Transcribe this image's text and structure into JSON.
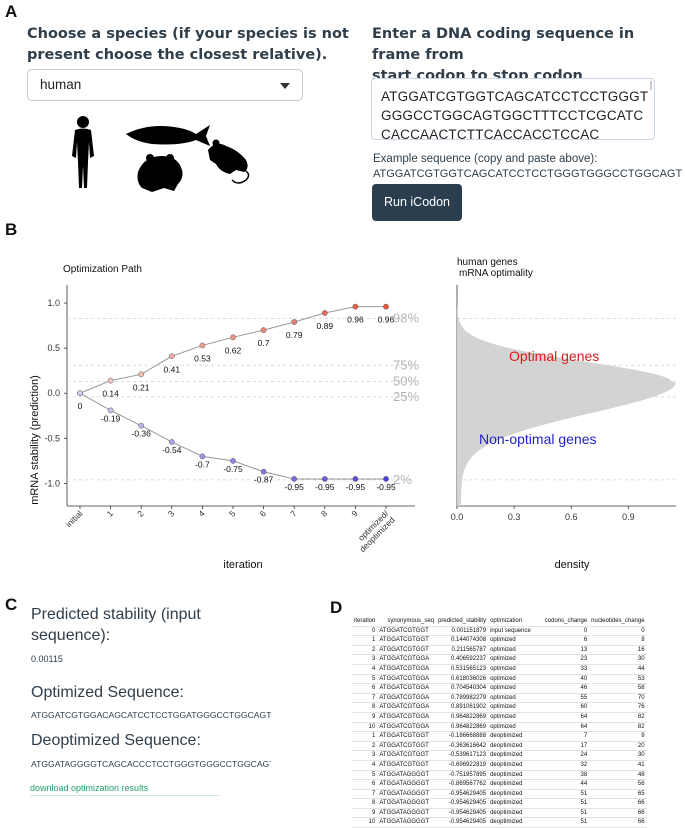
{
  "panels": {
    "a": "A",
    "b": "B",
    "c": "C",
    "d": "D"
  },
  "species": {
    "heading_line1": "Choose a species (if your species is not",
    "heading_line2": "present choose the closest relative).",
    "selected": "human",
    "icons": [
      "human-icon",
      "fish-icon",
      "frog-icon",
      "mouse-icon"
    ]
  },
  "sequence_input": {
    "heading_line1": "Enter a DNA coding sequence in frame from",
    "heading_line2": "start codon to stop codon",
    "value": "ATGGATCGTGGTCAGCATCCTCCTGGGTGGGCCTGGCAGTGGCTTTCCTCGCATCCACCAACTCTTCACCACCTCCAC",
    "example_label": "Example sequence (copy and paste above):",
    "example_value": "ATGGATCGTGGTCAGCATCCTCCTGGGTGGGCCTGGCAGT",
    "run_button": "Run iCodon"
  },
  "colors": {
    "optimized": "#e8553d",
    "deoptimized": "#4b3fd6",
    "density": "#d3d3d3",
    "optimal_text": "#dd1c1c",
    "nonoptimal_text": "#2222cc"
  },
  "chart_data": [
    {
      "type": "line",
      "title": "Optimization Path",
      "xlabel": "iteration",
      "ylabel": "mRNA stability (prediction)",
      "categories": [
        "initial",
        "1",
        "2",
        "3",
        "4",
        "5",
        "6",
        "7",
        "8",
        "9",
        "optimized/\ndeoptimized"
      ],
      "ylim": [
        -1.25,
        1.2
      ],
      "yticks": [
        "1.0",
        "0.5",
        "0.0",
        "-0.5",
        "-1.0"
      ],
      "series": [
        {
          "values": [
            0,
            0.14,
            0.21,
            0.41,
            0.53,
            0.62,
            0.7,
            0.79,
            0.89,
            0.96,
            0.96
          ],
          "labels": [
            "0",
            "0.14",
            "0.21",
            "0.41",
            "0.53",
            "0.62",
            "0.7",
            "0.79",
            "0.89",
            "0.96",
            "0.96"
          ]
        },
        {
          "values": [
            0,
            -0.19,
            -0.36,
            -0.54,
            -0.7,
            -0.75,
            -0.87,
            -0.95,
            -0.95,
            -0.95,
            -0.95
          ],
          "labels": [
            "",
            "-0.19",
            "-0.36",
            "-0.54",
            "-0.7",
            "-0.75",
            "-0.87",
            "-0.95",
            "-0.95",
            "-0.95",
            "-0.95"
          ]
        }
      ],
      "percentile_lines": [
        {
          "label": "98%",
          "value": 0.83
        },
        {
          "label": "75%",
          "value": 0.31
        },
        {
          "label": "50%",
          "value": 0.13
        },
        {
          "label": "25%",
          "value": -0.04
        },
        {
          "label": "2%",
          "value": -0.96
        }
      ]
    },
    {
      "type": "area",
      "title": "human genes\nmRNA optimality",
      "xlabel": "density",
      "xticks": [
        "0.0",
        "0.3",
        "0.6",
        "0.9"
      ],
      "xlim": [
        0,
        1.15
      ],
      "annotations": [
        "Optimal genes",
        "Non-optimal genes"
      ]
    }
  ],
  "section_c": {
    "stability_heading_line1": "Predicted stability (input",
    "stability_heading_line2": "sequence):",
    "stability_value": "0.00115",
    "optimized_heading": "Optimized Sequence:",
    "optimized_value": "ATGGATCGTGGACAGCATCCTCCTGGATGGGCCTGGCAGTGGCTTTCCTCGC",
    "deoptimized_heading": "Deoptimized Sequence:",
    "deoptimized_value": "ATGGATAGGGGTCAGCACCCTCCTGGGTGGGCCTGGCAGTGGCTTTCCTCGC",
    "download_link": "download optimization results"
  },
  "table": {
    "columns": [
      "iteration",
      "synonymous_seq",
      "predicted_stability",
      "optimization",
      "codons_change",
      "nucleotides_change"
    ],
    "rows": [
      [
        "0",
        "ATGGATCGTGGT",
        "0.001151879",
        "input sequence",
        "0",
        "0"
      ],
      [
        "1",
        "ATGGATCGTGGT",
        "0.144074308",
        "optimized",
        "6",
        "8"
      ],
      [
        "2",
        "ATGGATCGTGGT",
        "0.211565787",
        "optimized",
        "13",
        "16"
      ],
      [
        "3",
        "ATGGATCGTGGA",
        "0.406592237",
        "optimized",
        "23",
        "30"
      ],
      [
        "4",
        "ATGGATCGTGGA",
        "0.531565123",
        "optimized",
        "33",
        "44"
      ],
      [
        "5",
        "ATGGATCGTGGA",
        "0.618036026",
        "optimized",
        "40",
        "53"
      ],
      [
        "6",
        "ATGGATCGTGGA",
        "0.704540304",
        "optimized",
        "46",
        "58"
      ],
      [
        "7",
        "ATGGATCGTGGA",
        "0.789982279",
        "optimized",
        "55",
        "70"
      ],
      [
        "8",
        "ATGGATCGTGGA",
        "0.891061902",
        "optimized",
        "60",
        "76"
      ],
      [
        "9",
        "ATGGATCGTGGA",
        "0.964822869",
        "optimized",
        "64",
        "82"
      ],
      [
        "10",
        "ATGGATCGTGGA",
        "0.964822869",
        "optimized",
        "64",
        "82"
      ],
      [
        "1",
        "ATGGATCGTGGT",
        "-0.186668888",
        "deoptimized",
        "7",
        "9"
      ],
      [
        "2",
        "ATGGATCGTGGT",
        "-0.363616642",
        "deoptimized",
        "17",
        "20"
      ],
      [
        "3",
        "ATGGATCGTGGT",
        "-0.539617123",
        "deoptimized",
        "24",
        "30"
      ],
      [
        "4",
        "ATGGATCGTGGT",
        "-0.696922819",
        "deoptimized",
        "32",
        "41"
      ],
      [
        "5",
        "ATGGATAGGGGT",
        "-0.751957895",
        "deoptimized",
        "38",
        "48"
      ],
      [
        "6",
        "ATGGATAGGGGT",
        "-0.869567762",
        "deoptimized",
        "44",
        "56"
      ],
      [
        "7",
        "ATGGATAGGGGT",
        "-0.954629405",
        "deoptimized",
        "51",
        "65"
      ],
      [
        "8",
        "ATGGATAGGGGT",
        "-0.954629405",
        "deoptimized",
        "51",
        "66"
      ],
      [
        "9",
        "ATGGATAGGGGT",
        "-0.954629405",
        "deoptimized",
        "51",
        "66"
      ],
      [
        "10",
        "ATGGATAGGGGT",
        "-0.954629405",
        "deoptimized",
        "51",
        "66"
      ]
    ]
  }
}
